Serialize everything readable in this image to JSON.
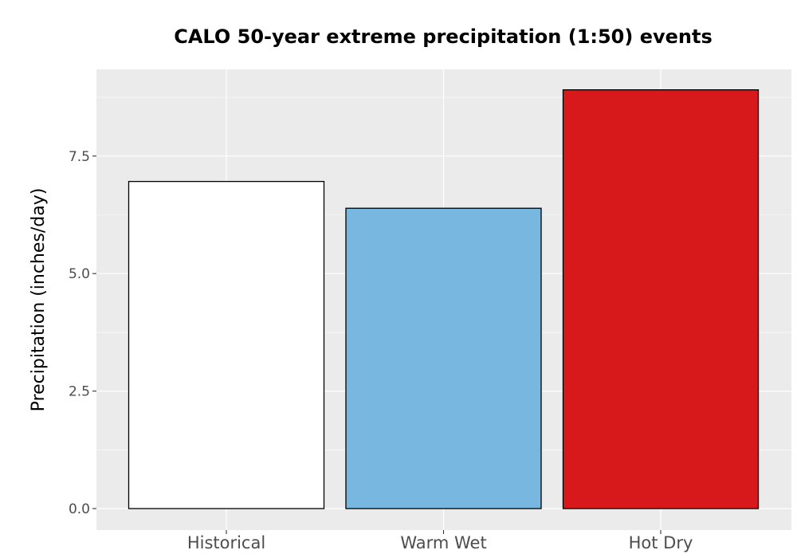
{
  "chart_data": {
    "type": "bar",
    "title": "CALO 50-year extreme precipitation (1:50) events",
    "xlabel": "",
    "ylabel": "Precipitation (inches/day)",
    "categories": [
      "Historical",
      "Warm Wet",
      "Hot Dry"
    ],
    "values": [
      6.96,
      6.39,
      8.91
    ],
    "colors": [
      "#ffffff",
      "#78b7e0",
      "#d7191c"
    ],
    "bar_outline": "#000000",
    "ylim": [
      -0.45,
      9.35
    ],
    "yticks": [
      0.0,
      2.5,
      5.0,
      7.5
    ],
    "ytick_labels": [
      "0.0",
      "2.5",
      "5.0",
      "7.5"
    ],
    "grid": true,
    "panel_background": "#ebebeb",
    "grid_color": "#ffffff"
  }
}
